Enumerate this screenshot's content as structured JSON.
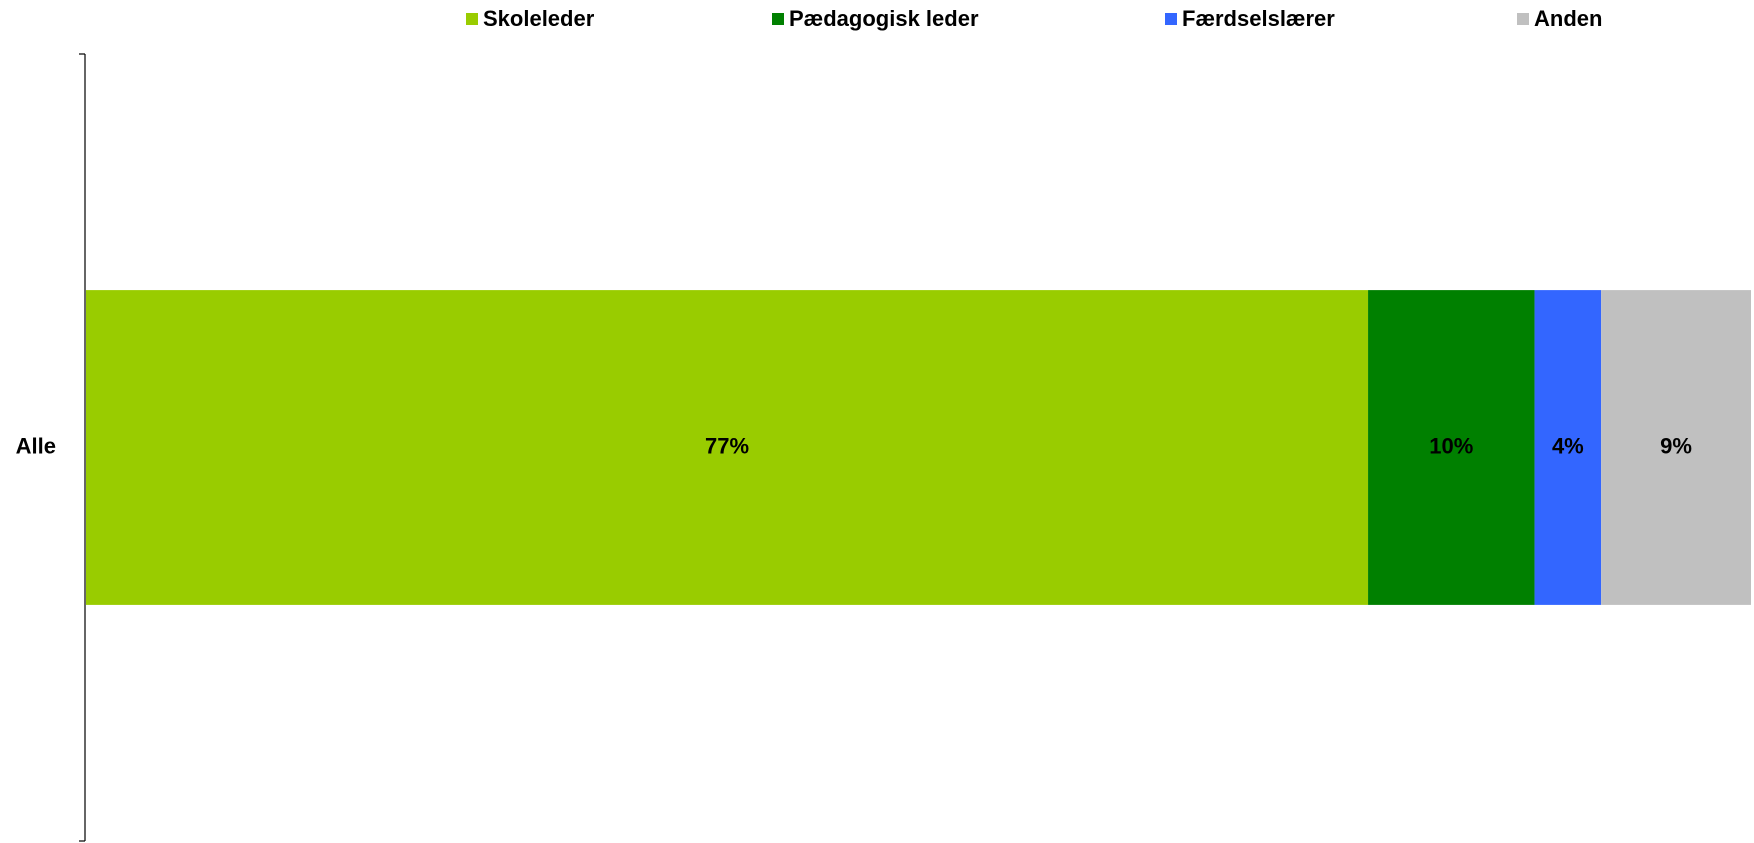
{
  "chart_data": {
    "type": "bar",
    "orientation": "horizontal",
    "stacked": true,
    "categories": [
      "Alle"
    ],
    "series": [
      {
        "name": "Skoleleder",
        "color": "#99cc00",
        "values": [
          77
        ],
        "value_labels": [
          "77%"
        ]
      },
      {
        "name": "Pædagogisk leder",
        "color": "#008000",
        "values": [
          10
        ],
        "value_labels": [
          "10%"
        ]
      },
      {
        "name": "Færdselslærer",
        "color": "#3366ff",
        "values": [
          4
        ],
        "value_labels": [
          "4%"
        ]
      },
      {
        "name": "Anden",
        "color": "#c0c0c0",
        "values": [
          9
        ],
        "value_labels": [
          "9%"
        ]
      }
    ],
    "xlim": [
      0,
      100
    ],
    "legend": "top"
  }
}
